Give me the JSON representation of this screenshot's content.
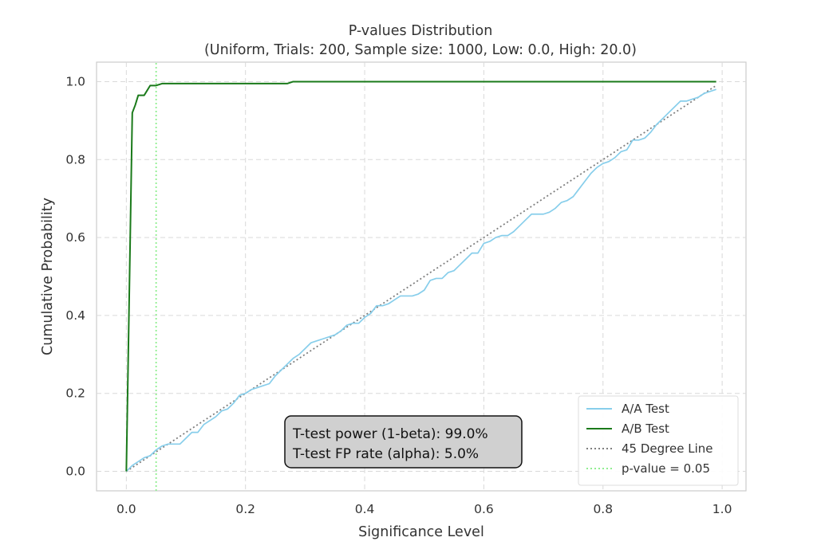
{
  "chart_data": {
    "type": "line",
    "title": "P-values Distribution",
    "subtitle": "(Uniform, Trials: 200, Sample size: 1000, Low: 0.0, High: 20.0)",
    "xlabel": "Significance Level",
    "ylabel": "Cumulative Probability",
    "xlim": [
      -0.05,
      1.04
    ],
    "ylim": [
      -0.05,
      1.05
    ],
    "xticks": [
      0.0,
      0.2,
      0.4,
      0.6,
      0.8,
      1.0
    ],
    "xtick_labels": [
      "0.0",
      "0.2",
      "0.4",
      "0.6",
      "0.8",
      "1.0"
    ],
    "yticks": [
      0.0,
      0.2,
      0.4,
      0.6,
      0.8,
      1.0
    ],
    "ytick_labels": [
      "0.0",
      "0.2",
      "0.4",
      "0.6",
      "0.8",
      "1.0"
    ],
    "grid": true,
    "legend_position": "lower-right",
    "annotation": [
      "T-test power (1-beta): 99.0%",
      "T-test FP rate (alpha): 5.0%"
    ],
    "series": [
      {
        "name": "A/A Test",
        "color": "#87ceeb",
        "style": "solid",
        "x": [
          0.0,
          0.01,
          0.02,
          0.03,
          0.04,
          0.05,
          0.06,
          0.07,
          0.08,
          0.09,
          0.1,
          0.11,
          0.12,
          0.13,
          0.14,
          0.15,
          0.16,
          0.17,
          0.18,
          0.19,
          0.2,
          0.21,
          0.22,
          0.23,
          0.24,
          0.25,
          0.26,
          0.27,
          0.28,
          0.29,
          0.3,
          0.31,
          0.32,
          0.33,
          0.34,
          0.35,
          0.36,
          0.37,
          0.38,
          0.39,
          0.4,
          0.41,
          0.42,
          0.43,
          0.44,
          0.45,
          0.46,
          0.47,
          0.48,
          0.49,
          0.5,
          0.51,
          0.52,
          0.53,
          0.54,
          0.55,
          0.56,
          0.57,
          0.58,
          0.59,
          0.6,
          0.61,
          0.62,
          0.63,
          0.64,
          0.65,
          0.66,
          0.67,
          0.68,
          0.69,
          0.7,
          0.71,
          0.72,
          0.73,
          0.74,
          0.75,
          0.76,
          0.77,
          0.78,
          0.79,
          0.8,
          0.81,
          0.82,
          0.83,
          0.84,
          0.85,
          0.86,
          0.87,
          0.88,
          0.89,
          0.9,
          0.91,
          0.92,
          0.93,
          0.94,
          0.95,
          0.96,
          0.97,
          0.98,
          0.99
        ],
        "y": [
          0.0,
          0.015,
          0.025,
          0.035,
          0.04,
          0.055,
          0.065,
          0.07,
          0.07,
          0.07,
          0.085,
          0.1,
          0.1,
          0.12,
          0.13,
          0.14,
          0.155,
          0.16,
          0.175,
          0.195,
          0.2,
          0.21,
          0.215,
          0.22,
          0.225,
          0.245,
          0.26,
          0.275,
          0.29,
          0.3,
          0.315,
          0.33,
          0.335,
          0.34,
          0.345,
          0.35,
          0.36,
          0.375,
          0.38,
          0.38,
          0.395,
          0.405,
          0.425,
          0.425,
          0.43,
          0.44,
          0.45,
          0.45,
          0.45,
          0.455,
          0.465,
          0.49,
          0.495,
          0.495,
          0.51,
          0.515,
          0.53,
          0.545,
          0.56,
          0.56,
          0.585,
          0.59,
          0.6,
          0.605,
          0.605,
          0.615,
          0.63,
          0.645,
          0.66,
          0.66,
          0.66,
          0.665,
          0.675,
          0.69,
          0.695,
          0.705,
          0.725,
          0.745,
          0.765,
          0.78,
          0.79,
          0.795,
          0.805,
          0.82,
          0.825,
          0.85,
          0.85,
          0.855,
          0.87,
          0.89,
          0.905,
          0.92,
          0.935,
          0.95,
          0.95,
          0.955,
          0.96,
          0.97,
          0.975,
          0.98
        ]
      },
      {
        "name": "A/B Test",
        "color": "#1a7a1a",
        "style": "solid",
        "x": [
          0.0,
          0.01,
          0.015,
          0.02,
          0.03,
          0.04,
          0.05,
          0.06,
          0.1,
          0.2,
          0.27,
          0.28,
          0.4,
          0.6,
          0.8,
          0.99
        ],
        "y": [
          0.0,
          0.92,
          0.94,
          0.965,
          0.965,
          0.99,
          0.99,
          0.995,
          0.995,
          0.995,
          0.995,
          1.0,
          1.0,
          1.0,
          1.0,
          1.0
        ]
      },
      {
        "name": "45 Degree Line",
        "color": "#7f7f7f",
        "style": "dotted",
        "x": [
          0.0,
          0.99
        ],
        "y": [
          0.0,
          0.99
        ]
      },
      {
        "name": "p-value = 0.05",
        "color": "#90ee90",
        "style": "dotted",
        "x": [
          0.05,
          0.05
        ],
        "y": [
          -0.05,
          1.05
        ]
      }
    ]
  }
}
